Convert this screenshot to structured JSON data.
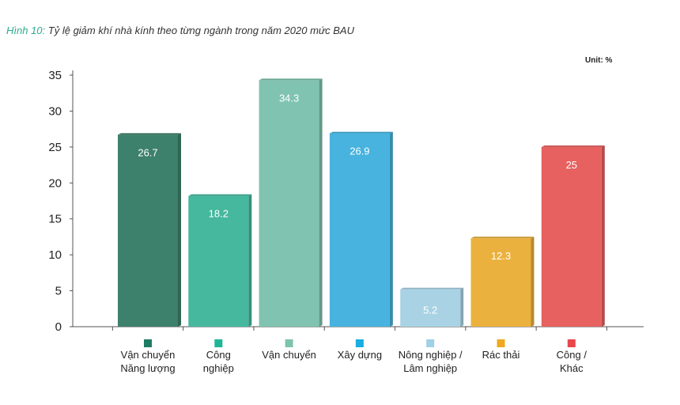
{
  "title_prefix": "Hình 10:",
  "title_text": "Tỷ lệ giảm khí nhà kính theo từng ngành trong năm 2020 mức BAU",
  "unit_label": "Unit: %",
  "chart_data": {
    "type": "bar",
    "title": "Tỷ lệ giảm khí nhà kính theo từng ngành trong năm 2020 mức BAU",
    "ylim": [
      0,
      35
    ],
    "yticks": [
      0,
      5,
      10,
      15,
      20,
      25,
      30,
      35
    ],
    "grid": false,
    "legend_position": "bottom",
    "categories": [
      [
        "Vận chuyển",
        "Năng lượng"
      ],
      [
        "Công",
        "nghiệp"
      ],
      [
        "Vận chuyển"
      ],
      [
        "Xây dựng"
      ],
      [
        "Nông nghiệp /",
        "Lâm nghiệp"
      ],
      [
        "Rác thải"
      ],
      [
        "Công /",
        "Khác"
      ]
    ],
    "values": [
      26.7,
      18.2,
      34.3,
      26.9,
      5.2,
      12.3,
      25
    ],
    "value_labels": [
      "26.7",
      "18.2",
      "34.3",
      "26.9",
      "5.2",
      "12.3",
      "25"
    ],
    "colors": [
      "#3d806b",
      "#45b89e",
      "#80c3b0",
      "#47b3de",
      "#a9d3e4",
      "#eab13e",
      "#e66160"
    ],
    "legend_colors": [
      "#1e7b64",
      "#1eb595",
      "#7ec4ad",
      "#18aee0",
      "#9fd1e6",
      "#f0a81f",
      "#e8474d"
    ]
  }
}
